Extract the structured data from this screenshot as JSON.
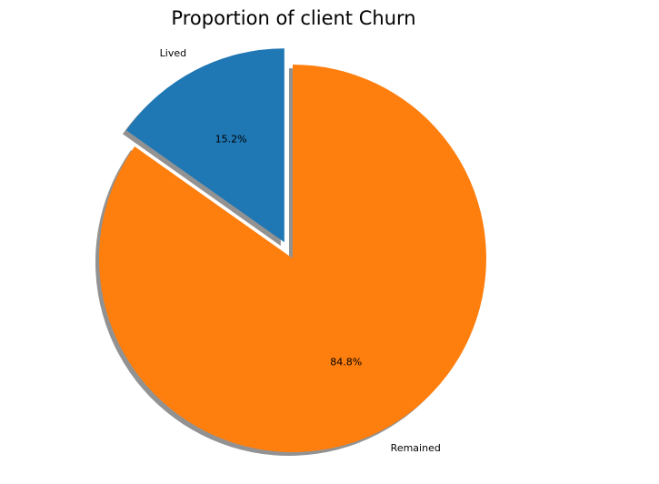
{
  "chart_data": {
    "type": "pie",
    "title": "Proportion of client Churn",
    "categories": [
      "Lived",
      "Remained"
    ],
    "values": [
      15.2,
      84.8
    ],
    "value_labels": [
      "15.2%",
      "84.8%"
    ],
    "colors": [
      "#1f77b4",
      "#ff7f0e"
    ],
    "exploded": [
      "Lived"
    ],
    "shadow": true,
    "start_angle": "top, counter-clockwise"
  }
}
